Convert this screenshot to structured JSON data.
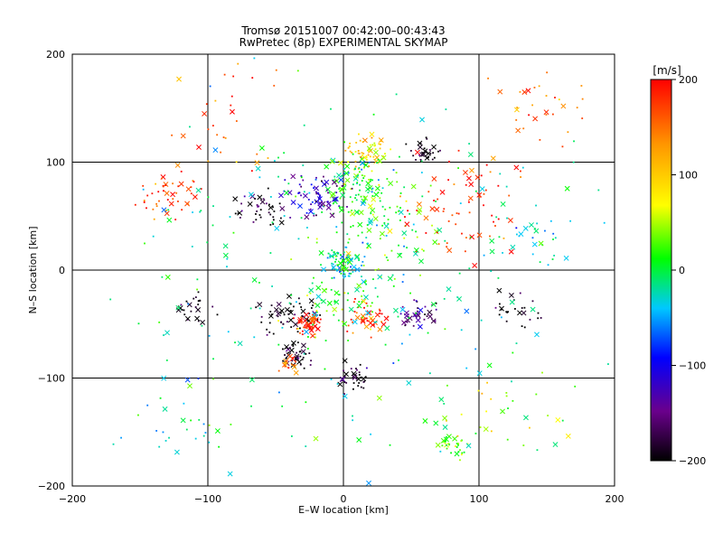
{
  "chart_data": {
    "type": "scatter",
    "title": "Tromsø 20151007 00:42:00–00:43:43",
    "subtitle": "RwPretec (8p) EXPERIMENTAL SKYMAP",
    "xlabel": "E–W location [km]",
    "ylabel": "N–S location [km]",
    "xlim": [
      -200,
      200
    ],
    "ylim": [
      -200,
      200
    ],
    "xticks": [
      "−200",
      "−100",
      "0",
      "100",
      "200"
    ],
    "yticks": [
      "−200",
      "−100",
      "0",
      "100",
      "200"
    ],
    "grid": true,
    "colorbar": {
      "label": "[m/s]",
      "range": [
        -200,
        200
      ],
      "ticks": [
        "200",
        "100",
        "0",
        "−100",
        "−200"
      ],
      "colors": [
        "#000000",
        "#6a008c",
        "#0000ff",
        "#00c8ff",
        "#00ff00",
        "#ffff00",
        "#ff9600",
        "#ff0000"
      ]
    },
    "markers": [
      "dot",
      "x"
    ],
    "clusters": [
      {
        "x": 15,
        "y": 110,
        "v": 110,
        "n": 60,
        "spread": 10
      },
      {
        "x": 10,
        "y": 80,
        "v": 20,
        "n": 90,
        "spread": 18
      },
      {
        "x": -20,
        "y": 70,
        "v": -120,
        "n": 70,
        "spread": 15
      },
      {
        "x": -60,
        "y": 60,
        "v": -190,
        "n": 40,
        "spread": 12
      },
      {
        "x": -130,
        "y": 70,
        "v": 180,
        "n": 45,
        "spread": 18
      },
      {
        "x": 60,
        "y": 110,
        "v": -200,
        "n": 30,
        "spread": 8
      },
      {
        "x": 0,
        "y": 5,
        "v": -10,
        "n": 70,
        "spread": 10
      },
      {
        "x": 30,
        "y": 40,
        "v": 40,
        "n": 90,
        "spread": 30
      },
      {
        "x": -40,
        "y": -42,
        "v": -200,
        "n": 55,
        "spread": 14
      },
      {
        "x": -25,
        "y": -50,
        "v": 195,
        "n": 50,
        "spread": 7
      },
      {
        "x": 20,
        "y": -45,
        "v": 180,
        "n": 40,
        "spread": 12
      },
      {
        "x": 55,
        "y": -40,
        "v": -150,
        "n": 35,
        "spread": 10
      },
      {
        "x": 0,
        "y": -30,
        "v": 30,
        "n": 60,
        "spread": 25
      },
      {
        "x": -35,
        "y": -80,
        "v": -195,
        "n": 40,
        "spread": 8
      },
      {
        "x": -40,
        "y": -85,
        "v": 160,
        "n": 20,
        "spread": 6
      },
      {
        "x": 10,
        "y": -100,
        "v": -200,
        "n": 35,
        "spread": 8
      },
      {
        "x": 80,
        "y": -160,
        "v": 40,
        "n": 30,
        "spread": 8
      },
      {
        "x": -110,
        "y": -35,
        "v": -200,
        "n": 25,
        "spread": 10
      },
      {
        "x": 130,
        "y": -40,
        "v": -200,
        "n": 25,
        "spread": 12
      },
      {
        "x": 90,
        "y": 60,
        "v": 190,
        "n": 70,
        "spread": 35
      },
      {
        "x": 150,
        "y": 30,
        "v": -20,
        "n": 25,
        "spread": 20
      },
      {
        "x": -120,
        "y": -150,
        "v": -20,
        "n": 25,
        "spread": 30
      },
      {
        "x": 120,
        "y": -120,
        "v": 80,
        "n": 30,
        "spread": 35
      },
      {
        "x": -90,
        "y": 140,
        "v": 180,
        "n": 30,
        "spread": 35
      },
      {
        "x": 140,
        "y": 150,
        "v": 150,
        "n": 30,
        "spread": 30
      },
      {
        "x": 0,
        "y": 0,
        "v": 0,
        "n": 240,
        "spread": 110
      }
    ]
  }
}
